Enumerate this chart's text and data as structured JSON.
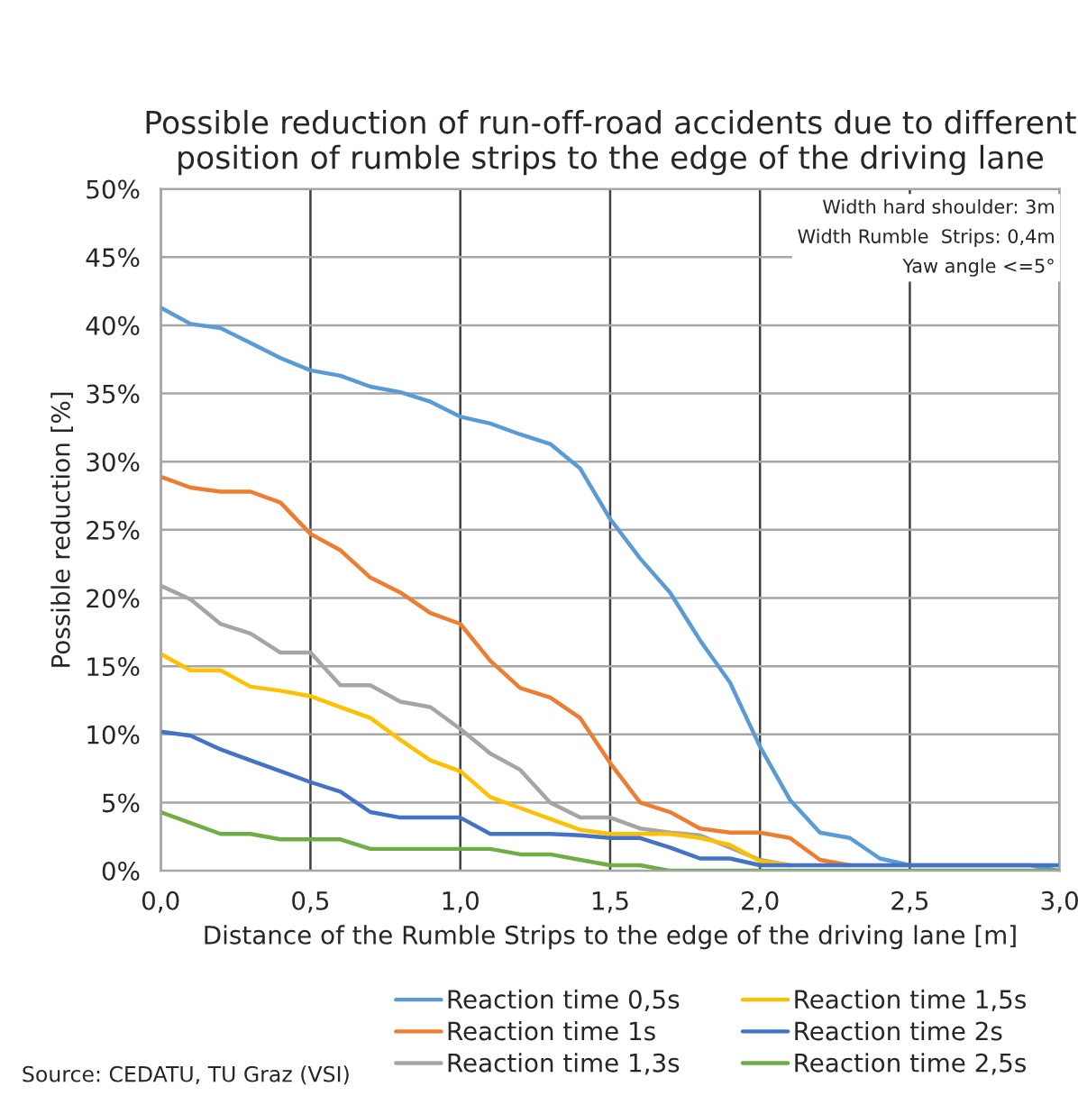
{
  "chart_data": {
    "type": "line",
    "title": "Possible reduction of run-off-road accidents due to different position of rumble strips to the edge of the driving lane",
    "xlabel": "Distance of the Rumble Strips to the edge of the driving lane [m]",
    "ylabel": "Possible reduction [%]",
    "x": [
      0.0,
      0.1,
      0.2,
      0.3,
      0.4,
      0.5,
      0.6,
      0.7,
      0.8,
      0.9,
      1.0,
      1.1,
      1.2,
      1.3,
      1.4,
      1.5,
      1.6,
      1.7,
      1.8,
      1.9,
      2.0,
      2.1,
      2.2,
      2.3,
      2.4,
      2.5,
      2.6,
      2.7,
      2.8,
      2.9,
      3.0
    ],
    "series": [
      {
        "name": "Reaction time 0,5s",
        "color": "#5b9bd5",
        "values": [
          41.3,
          40.1,
          39.8,
          38.7,
          37.6,
          36.7,
          36.3,
          35.5,
          35.1,
          34.4,
          33.3,
          32.8,
          32.0,
          31.3,
          29.5,
          25.8,
          22.9,
          20.4,
          16.9,
          13.8,
          9.1,
          5.2,
          2.8,
          2.4,
          0.9,
          0.4,
          0.4,
          0.4,
          0.4,
          0.4,
          0
        ]
      },
      {
        "name": "Reaction time 1s",
        "color": "#ed7d31",
        "values": [
          28.9,
          28.1,
          27.8,
          27.8,
          27.0,
          24.7,
          23.5,
          21.5,
          20.4,
          18.9,
          18.1,
          15.4,
          13.4,
          12.7,
          11.2,
          7.9,
          5.0,
          4.3,
          3.1,
          2.8,
          2.8,
          2.4,
          0.8,
          0.4,
          null,
          null,
          null,
          null,
          null,
          null,
          null
        ]
      },
      {
        "name": "Reaction time 1,3s",
        "color": "#a5a5a5",
        "values": [
          20.9,
          19.9,
          18.1,
          17.4,
          16.0,
          16.0,
          13.6,
          13.6,
          12.4,
          12.0,
          10.4,
          8.6,
          7.4,
          5.0,
          3.9,
          3.9,
          3.1,
          2.8,
          2.6,
          1.7,
          0.8,
          0.4,
          null,
          null,
          null,
          null,
          null,
          null,
          null,
          null,
          null
        ]
      },
      {
        "name": "Reaction time 1,5s",
        "color": "#ffc000",
        "values": [
          15.9,
          14.7,
          14.7,
          13.5,
          13.2,
          12.8,
          12.0,
          11.2,
          9.6,
          8.1,
          7.3,
          5.4,
          4.6,
          3.8,
          3.0,
          2.7,
          2.7,
          2.7,
          2.4,
          1.9,
          0.7,
          0.4,
          null,
          null,
          null,
          null,
          null,
          null,
          null,
          null,
          null
        ]
      },
      {
        "name": "Reaction time 2s",
        "color": "#4472c4",
        "values": [
          10.2,
          9.9,
          8.9,
          8.1,
          7.3,
          6.5,
          5.8,
          4.3,
          3.9,
          3.9,
          3.9,
          2.7,
          2.7,
          2.7,
          2.6,
          2.4,
          2.4,
          1.7,
          0.9,
          0.9,
          0.4,
          0.4,
          0.4,
          0.4,
          0.4,
          0.4,
          0.4,
          0.4,
          0.4,
          0.4,
          0.4
        ]
      },
      {
        "name": "Reaction time 2,5s",
        "color": "#70ad47",
        "values": [
          4.3,
          3.5,
          2.7,
          2.7,
          2.3,
          2.3,
          2.3,
          1.6,
          1.6,
          1.6,
          1.6,
          1.6,
          1.2,
          1.2,
          0.8,
          0.4,
          0.4,
          0,
          0,
          0,
          0,
          0,
          0,
          0,
          0,
          0,
          0,
          0,
          0,
          0,
          0
        ]
      }
    ],
    "xlim": [
      0,
      3
    ],
    "xticks": [
      {
        "value": 0,
        "label": "0,0"
      },
      {
        "value": 0.5,
        "label": "0,5"
      },
      {
        "value": 1,
        "label": "1,0"
      },
      {
        "value": 1.5,
        "label": "1,5"
      },
      {
        "value": 2,
        "label": "2,0"
      },
      {
        "value": 2.5,
        "label": "2,5"
      },
      {
        "value": 3,
        "label": "3,0"
      }
    ],
    "ylim": [
      0,
      50
    ],
    "yticks": [
      {
        "value": 0,
        "label": "0%"
      },
      {
        "value": 5,
        "label": "5%"
      },
      {
        "value": 10,
        "label": "10%"
      },
      {
        "value": 15,
        "label": "15%"
      },
      {
        "value": 20,
        "label": "20%"
      },
      {
        "value": 25,
        "label": "25%"
      },
      {
        "value": 30,
        "label": "30%"
      },
      {
        "value": 35,
        "label": "35%"
      },
      {
        "value": 40,
        "label": "40%"
      },
      {
        "value": 45,
        "label": "45%"
      },
      {
        "value": 50,
        "label": "50%"
      }
    ],
    "grid": true,
    "legend": "bottom",
    "marker": "none",
    "line_style": "solid",
    "annotations": [
      "Width hard shoulder: 3m\nWidth Rumble  Strips: 0,4m\nYaw angle <=5°",
      "Source: CEDATU, TU Graz (VSI)"
    ]
  }
}
